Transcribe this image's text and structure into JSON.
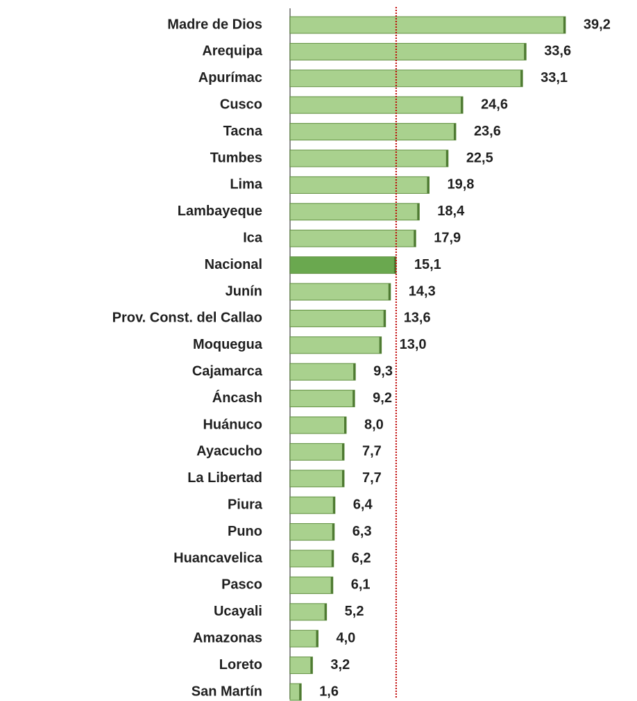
{
  "chart_data": {
    "type": "barh",
    "categories": [
      "Madre de Dios",
      "Arequipa",
      "Apurímac",
      "Cusco",
      "Tacna",
      "Tumbes",
      "Lima",
      "Lambayeque",
      "Ica",
      "Nacional",
      "Junín",
      "Prov. Const. del Callao",
      "Moquegua",
      "Cajamarca",
      "Áncash",
      "Huánuco",
      "Ayacucho",
      "La Libertad",
      "Piura",
      "Puno",
      "Huancavelica",
      "Pasco",
      "Ucayali",
      "Amazonas",
      "Loreto",
      "San Martín"
    ],
    "values": [
      39.2,
      33.6,
      33.1,
      24.6,
      23.6,
      22.5,
      19.8,
      18.4,
      17.9,
      15.1,
      14.3,
      13.6,
      13.0,
      9.3,
      9.2,
      8.0,
      7.7,
      7.7,
      6.4,
      6.3,
      6.2,
      6.1,
      5.2,
      4.0,
      3.2,
      1.6
    ],
    "value_labels": [
      "39,2",
      "33,6",
      "33,1",
      "24,6",
      "23,6",
      "22,5",
      "19,8",
      "18,4",
      "17,9",
      "15,1",
      "14,3",
      "13,6",
      "13,0",
      "9,3",
      "9,2",
      "8,0",
      "7,7",
      "7,7",
      "6,4",
      "6,3",
      "6,2",
      "6,1",
      "5,2",
      "4,0",
      "3,2",
      "1,6"
    ],
    "color": "#a9d18e",
    "highlight_category": "Nacional",
    "highlight_color": "#6aa84f",
    "reference_line_color": "#c00000",
    "xlim": [
      0,
      40
    ]
  }
}
